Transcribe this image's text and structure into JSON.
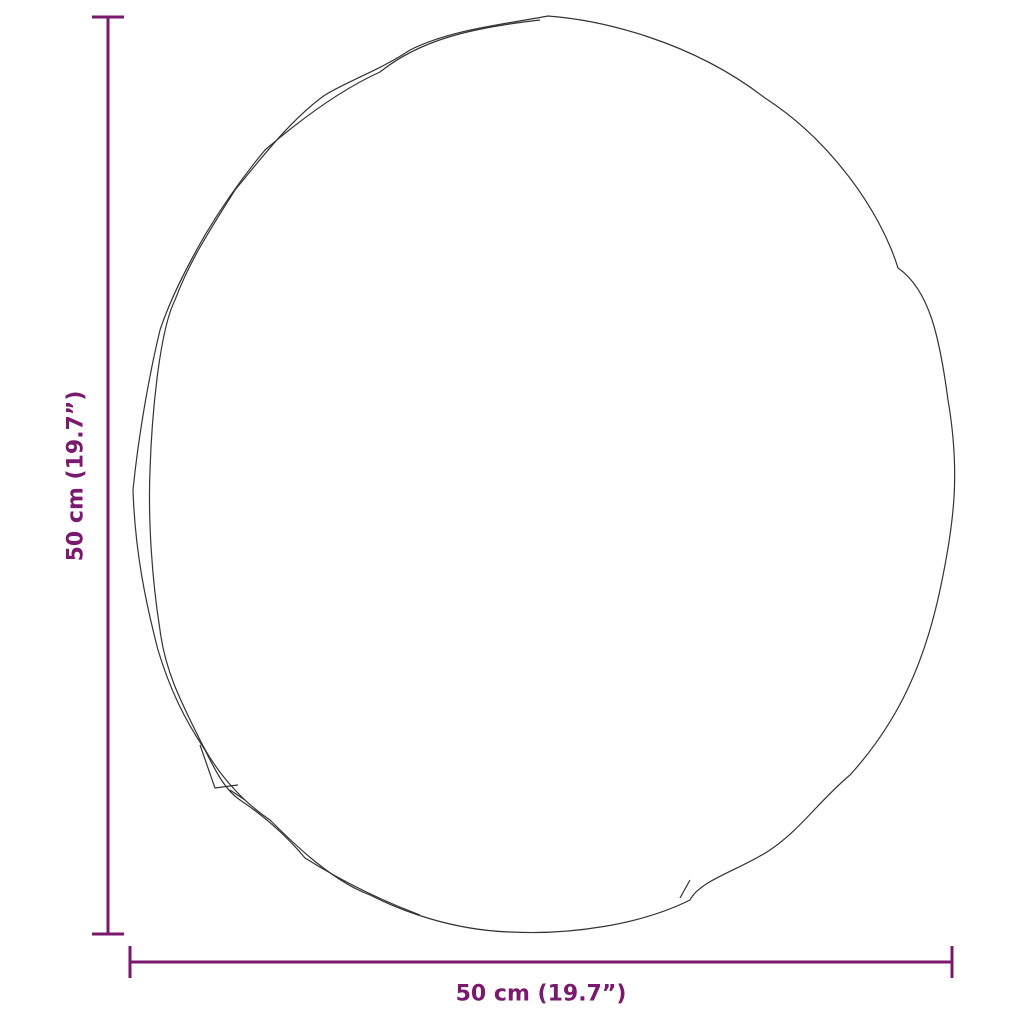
{
  "dimensions": {
    "width_label": "50 cm (19.7”)",
    "height_label": "50 cm (19.7”)"
  },
  "colors": {
    "dimension": "#7a1a6e",
    "outline": "#333333"
  }
}
